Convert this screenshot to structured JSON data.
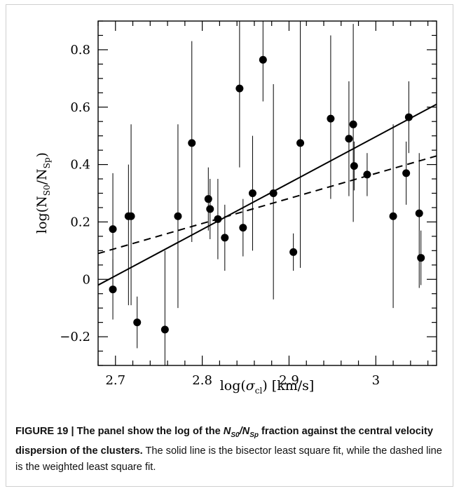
{
  "figure": {
    "caption_head_a": "FIGURE 19 | The panel show the log of the ",
    "caption_head_b": " fraction against the central velocity dispersion of the clusters.",
    "caption_frac": {
      "n": "N",
      "s0": "S0",
      "slash": "/",
      "nn": "N",
      "sp": "Sp"
    },
    "caption_body": " The solid line is the bisector least square fit, while the dashed line is the weighted least square fit."
  },
  "chart_data": {
    "type": "scatter",
    "xlabel": "log(σ_cl) [km/s]",
    "ylabel": "log(N_S0/N_Sp)",
    "xlabel_parts": {
      "pre": "log(",
      "sigma": "σ",
      "sub": "cl",
      "post": ")  [km/s]"
    },
    "ylabel_parts": {
      "pre": "log(N",
      "sub1": "S0",
      "mid": "/N",
      "sub2": "Sp",
      "post": ")"
    },
    "xlim": [
      2.68,
      3.07
    ],
    "ylim": [
      -0.3,
      0.9
    ],
    "x_ticks": [
      2.7,
      2.8,
      2.9,
      3.0
    ],
    "x_tick_labels": [
      "2.7",
      "2.8",
      "2.9",
      "3"
    ],
    "y_ticks": [
      -0.2,
      0,
      0.2,
      0.4,
      0.6,
      0.8
    ],
    "y_tick_labels": [
      "−0.2",
      "0",
      "0.2",
      "0.4",
      "0.6",
      "0.8"
    ],
    "points": [
      {
        "x": 2.697,
        "y": 0.175,
        "lo": -0.02,
        "hi": 0.37
      },
      {
        "x": 2.697,
        "y": -0.035,
        "lo": -0.14,
        "hi": 0.07
      },
      {
        "x": 2.715,
        "y": 0.22,
        "lo": -0.09,
        "hi": 0.4
      },
      {
        "x": 2.718,
        "y": 0.22,
        "lo": -0.09,
        "hi": 0.54
      },
      {
        "x": 2.725,
        "y": -0.15,
        "lo": -0.24,
        "hi": -0.06
      },
      {
        "x": 2.757,
        "y": -0.175,
        "lo": -0.3,
        "hi": 0.1
      },
      {
        "x": 2.772,
        "y": 0.22,
        "lo": -0.1,
        "hi": 0.54
      },
      {
        "x": 2.788,
        "y": 0.475,
        "lo": 0.13,
        "hi": 0.83
      },
      {
        "x": 2.807,
        "y": 0.28,
        "lo": 0.17,
        "hi": 0.39
      },
      {
        "x": 2.809,
        "y": 0.245,
        "lo": 0.14,
        "hi": 0.35
      },
      {
        "x": 2.818,
        "y": 0.21,
        "lo": 0.07,
        "hi": 0.35
      },
      {
        "x": 2.826,
        "y": 0.145,
        "lo": 0.03,
        "hi": 0.26
      },
      {
        "x": 2.843,
        "y": 0.665,
        "lo": 0.39,
        "hi": 0.9
      },
      {
        "x": 2.847,
        "y": 0.18,
        "lo": 0.08,
        "hi": 0.28
      },
      {
        "x": 2.858,
        "y": 0.3,
        "lo": 0.1,
        "hi": 0.5
      },
      {
        "x": 2.87,
        "y": 0.765,
        "lo": 0.62,
        "hi": 0.9
      },
      {
        "x": 2.882,
        "y": 0.3,
        "lo": -0.07,
        "hi": 0.68
      },
      {
        "x": 2.905,
        "y": 0.095,
        "lo": 0.03,
        "hi": 0.16
      },
      {
        "x": 2.913,
        "y": 0.475,
        "lo": 0.04,
        "hi": 0.91
      },
      {
        "x": 2.948,
        "y": 0.56,
        "lo": 0.28,
        "hi": 0.85
      },
      {
        "x": 2.969,
        "y": 0.49,
        "lo": 0.29,
        "hi": 0.69
      },
      {
        "x": 2.974,
        "y": 0.54,
        "lo": 0.2,
        "hi": 0.89
      },
      {
        "x": 2.975,
        "y": 0.395,
        "lo": 0.31,
        "hi": 0.48
      },
      {
        "x": 2.99,
        "y": 0.365,
        "lo": 0.29,
        "hi": 0.44
      },
      {
        "x": 3.02,
        "y": 0.22,
        "lo": -0.1,
        "hi": 0.54
      },
      {
        "x": 3.035,
        "y": 0.37,
        "lo": 0.26,
        "hi": 0.48
      },
      {
        "x": 3.038,
        "y": 0.565,
        "lo": 0.44,
        "hi": 0.69
      },
      {
        "x": 3.05,
        "y": 0.23,
        "lo": -0.03,
        "hi": 0.44
      },
      {
        "x": 3.052,
        "y": 0.075,
        "lo": -0.02,
        "hi": 0.17
      }
    ],
    "fits": [
      {
        "style": "solid",
        "x": [
          2.68,
          3.07
        ],
        "y": [
          -0.02,
          0.61
        ]
      },
      {
        "style": "dashed",
        "x": [
          2.68,
          3.07
        ],
        "y": [
          0.09,
          0.43
        ]
      }
    ]
  }
}
